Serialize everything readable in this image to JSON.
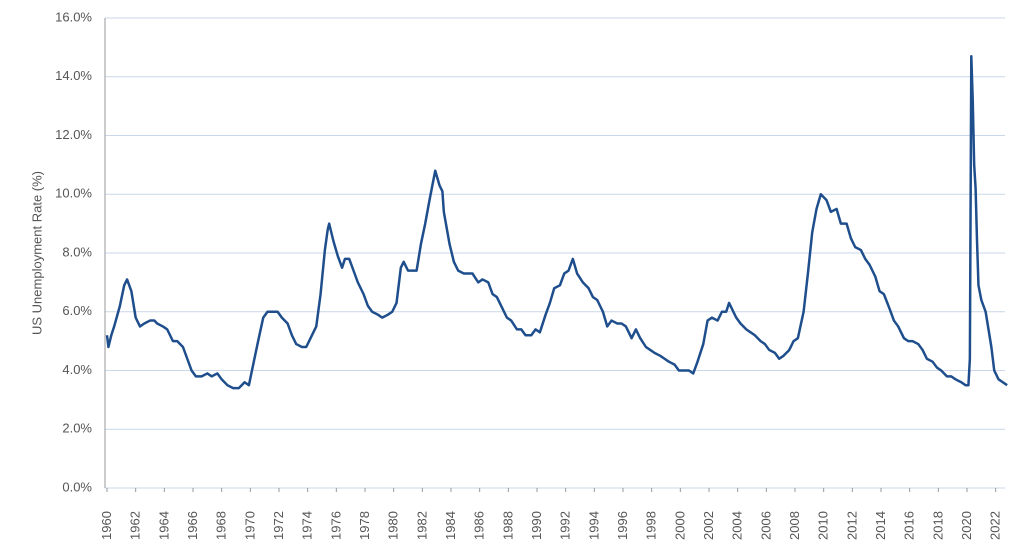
{
  "chart_data": {
    "type": "line",
    "y_label": "US Unemployment Rate (%)",
    "color": "#1f4e8c",
    "grid": true,
    "xlim": [
      1960,
      2023
    ],
    "ylim": [
      0,
      16
    ],
    "xticks": [
      1960,
      1962,
      1964,
      1966,
      1968,
      1970,
      1972,
      1974,
      1976,
      1978,
      1980,
      1982,
      1984,
      1986,
      1988,
      1990,
      1992,
      1994,
      1996,
      1998,
      2000,
      2002,
      2004,
      2006,
      2008,
      2010,
      2012,
      2014,
      2016,
      2018,
      2020,
      2022
    ],
    "yticks": [
      {
        "value": 0,
        "label": "0.0%"
      },
      {
        "value": 2,
        "label": "2.0%"
      },
      {
        "value": 4,
        "label": "4.0%"
      },
      {
        "value": 6,
        "label": "6.0%"
      },
      {
        "value": 8,
        "label": "8.0%"
      },
      {
        "value": 10,
        "label": "10.0%"
      },
      {
        "value": 12,
        "label": "12.0%"
      },
      {
        "value": 14,
        "label": "14.0%"
      },
      {
        "value": 16,
        "label": "16.0%"
      }
    ],
    "x": [
      1960.0,
      1960.1,
      1960.3,
      1960.5,
      1960.9,
      1961.2,
      1961.4,
      1961.7,
      1962.0,
      1962.3,
      1962.6,
      1963.0,
      1963.3,
      1963.5,
      1963.9,
      1964.2,
      1964.6,
      1964.9,
      1965.3,
      1965.6,
      1965.9,
      1966.2,
      1966.6,
      1967.0,
      1967.3,
      1967.7,
      1968.0,
      1968.4,
      1968.8,
      1969.2,
      1969.6,
      1969.9,
      1970.2,
      1970.5,
      1970.9,
      1971.2,
      1971.6,
      1971.9,
      1972.2,
      1972.6,
      1972.9,
      1973.2,
      1973.6,
      1973.9,
      1974.2,
      1974.6,
      1974.9,
      1975.2,
      1975.4,
      1975.5,
      1975.8,
      1976.1,
      1976.4,
      1976.6,
      1976.9,
      1977.2,
      1977.5,
      1977.9,
      1978.2,
      1978.5,
      1978.9,
      1979.2,
      1979.6,
      1979.9,
      1980.2,
      1980.5,
      1980.7,
      1981.0,
      1981.3,
      1981.6,
      1981.9,
      1982.2,
      1982.5,
      1982.9,
      1983.2,
      1983.4,
      1983.5,
      1983.9,
      1984.2,
      1984.5,
      1984.9,
      1985.2,
      1985.5,
      1985.9,
      1986.2,
      1986.6,
      1986.9,
      1987.2,
      1987.6,
      1987.9,
      1988.2,
      1988.6,
      1988.9,
      1989.2,
      1989.6,
      1989.9,
      1990.2,
      1990.6,
      1990.9,
      1991.2,
      1991.6,
      1991.9,
      1992.2,
      1992.5,
      1992.8,
      1993.2,
      1993.6,
      1993.9,
      1994.2,
      1994.6,
      1994.9,
      1995.2,
      1995.6,
      1995.9,
      1996.2,
      1996.6,
      1996.9,
      1997.2,
      1997.6,
      1997.9,
      1998.2,
      1998.6,
      1998.9,
      1999.2,
      1999.6,
      1999.9,
      2000.2,
      2000.6,
      2000.9,
      2001.2,
      2001.6,
      2001.9,
      2002.2,
      2002.6,
      2002.9,
      2003.2,
      2003.4,
      2003.9,
      2004.2,
      2004.6,
      2004.9,
      2005.2,
      2005.6,
      2005.9,
      2006.2,
      2006.6,
      2006.9,
      2007.2,
      2007.6,
      2007.9,
      2008.2,
      2008.6,
      2008.9,
      2009.2,
      2009.5,
      2009.8,
      2010.2,
      2010.5,
      2010.9,
      2011.2,
      2011.6,
      2011.9,
      2012.2,
      2012.6,
      2012.9,
      2013.2,
      2013.6,
      2013.9,
      2014.2,
      2014.6,
      2014.9,
      2015.2,
      2015.6,
      2015.9,
      2016.2,
      2016.6,
      2016.9,
      2017.2,
      2017.6,
      2017.9,
      2018.2,
      2018.6,
      2018.9,
      2019.2,
      2019.6,
      2019.9,
      2020.1,
      2020.2,
      2020.3,
      2020.4,
      2020.5,
      2020.6,
      2020.7,
      2020.8,
      2021.0,
      2021.3,
      2021.5,
      2021.7,
      2021.9,
      2022.2,
      2022.5,
      2022.8
    ],
    "values": [
      5.2,
      4.8,
      5.2,
      5.5,
      6.2,
      6.9,
      7.1,
      6.7,
      5.8,
      5.5,
      5.6,
      5.7,
      5.7,
      5.6,
      5.5,
      5.4,
      5.0,
      5.0,
      4.8,
      4.4,
      4.0,
      3.8,
      3.8,
      3.9,
      3.8,
      3.9,
      3.7,
      3.5,
      3.4,
      3.4,
      3.6,
      3.5,
      4.2,
      4.9,
      5.8,
      6.0,
      6.0,
      6.0,
      5.8,
      5.6,
      5.2,
      4.9,
      4.8,
      4.8,
      5.1,
      5.5,
      6.6,
      8.1,
      8.8,
      9.0,
      8.4,
      7.9,
      7.5,
      7.8,
      7.8,
      7.4,
      7.0,
      6.6,
      6.2,
      6.0,
      5.9,
      5.8,
      5.9,
      6.0,
      6.3,
      7.5,
      7.7,
      7.4,
      7.4,
      7.4,
      8.3,
      9.0,
      9.8,
      10.8,
      10.3,
      10.1,
      9.4,
      8.3,
      7.7,
      7.4,
      7.3,
      7.3,
      7.3,
      7.0,
      7.1,
      7.0,
      6.6,
      6.5,
      6.1,
      5.8,
      5.7,
      5.4,
      5.4,
      5.2,
      5.2,
      5.4,
      5.3,
      5.9,
      6.3,
      6.8,
      6.9,
      7.3,
      7.4,
      7.8,
      7.3,
      7.0,
      6.8,
      6.5,
      6.4,
      6.0,
      5.5,
      5.7,
      5.6,
      5.6,
      5.5,
      5.1,
      5.4,
      5.1,
      4.8,
      4.7,
      4.6,
      4.5,
      4.4,
      4.3,
      4.2,
      4.0,
      4.0,
      4.0,
      3.9,
      4.3,
      4.9,
      5.7,
      5.8,
      5.7,
      6.0,
      6.0,
      6.3,
      5.8,
      5.6,
      5.4,
      5.3,
      5.2,
      5.0,
      4.9,
      4.7,
      4.6,
      4.4,
      4.5,
      4.7,
      5.0,
      5.1,
      6.0,
      7.3,
      8.7,
      9.5,
      10.0,
      9.8,
      9.4,
      9.5,
      9.0,
      9.0,
      8.5,
      8.2,
      8.1,
      7.8,
      7.6,
      7.2,
      6.7,
      6.6,
      6.1,
      5.7,
      5.5,
      5.1,
      5.0,
      5.0,
      4.9,
      4.7,
      4.4,
      4.3,
      4.1,
      4.0,
      3.8,
      3.8,
      3.7,
      3.6,
      3.5,
      3.5,
      4.4,
      14.7,
      13.2,
      11.0,
      10.2,
      8.4,
      6.9,
      6.4,
      6.0,
      5.4,
      4.8,
      4.0,
      3.7,
      3.6,
      3.5
    ]
  }
}
